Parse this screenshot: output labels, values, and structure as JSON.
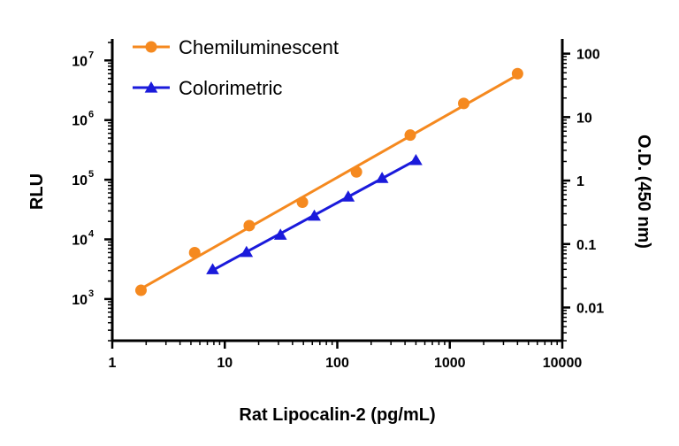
{
  "chart_data": {
    "type": "scatter",
    "x_axis": {
      "label": "Rat Lipocalin-2 (pg/mL)",
      "scale": "log",
      "range": [
        1,
        10000
      ],
      "ticks": [
        1,
        10,
        100,
        1000,
        10000
      ],
      "tick_labels": [
        "1",
        "10",
        "100",
        "1000",
        "10000"
      ]
    },
    "y_axis_left": {
      "label": "RLU",
      "scale": "log",
      "range": [
        200,
        20000000
      ],
      "ticks": [
        1000,
        10000,
        100000,
        1000000,
        10000000
      ],
      "tick_labels": [
        {
          "base": "10",
          "exp": "3"
        },
        {
          "base": "10",
          "exp": "4"
        },
        {
          "base": "10",
          "exp": "5"
        },
        {
          "base": "10",
          "exp": "6"
        },
        {
          "base": "10",
          "exp": "7"
        }
      ]
    },
    "y_axis_right": {
      "label": "O.D. (450 nm)",
      "scale": "log",
      "range": [
        0.003,
        150
      ],
      "ticks": [
        0.01,
        0.1,
        1,
        10,
        100
      ],
      "tick_labels": [
        "0.01",
        "0.1",
        "1",
        "10",
        "100"
      ]
    },
    "grid": false,
    "legend_position": "top-left",
    "series": [
      {
        "name": "Chemiluminescent",
        "axis": "left",
        "color": "#F5891F",
        "marker": "circle",
        "x": [
          1.8,
          5.4,
          16.5,
          49,
          148,
          445,
          1330,
          4000
        ],
        "y": [
          1400,
          6000,
          17000,
          42000,
          135000,
          560000,
          1900000,
          6000000
        ]
      },
      {
        "name": "Colorimetric",
        "axis": "right",
        "color": "#1A1ADB",
        "marker": "triangle",
        "x": [
          7.8,
          15.6,
          31.25,
          62.5,
          125,
          250,
          500
        ],
        "y": [
          0.04,
          0.075,
          0.14,
          0.28,
          0.56,
          1.1,
          2.1
        ]
      }
    ]
  }
}
